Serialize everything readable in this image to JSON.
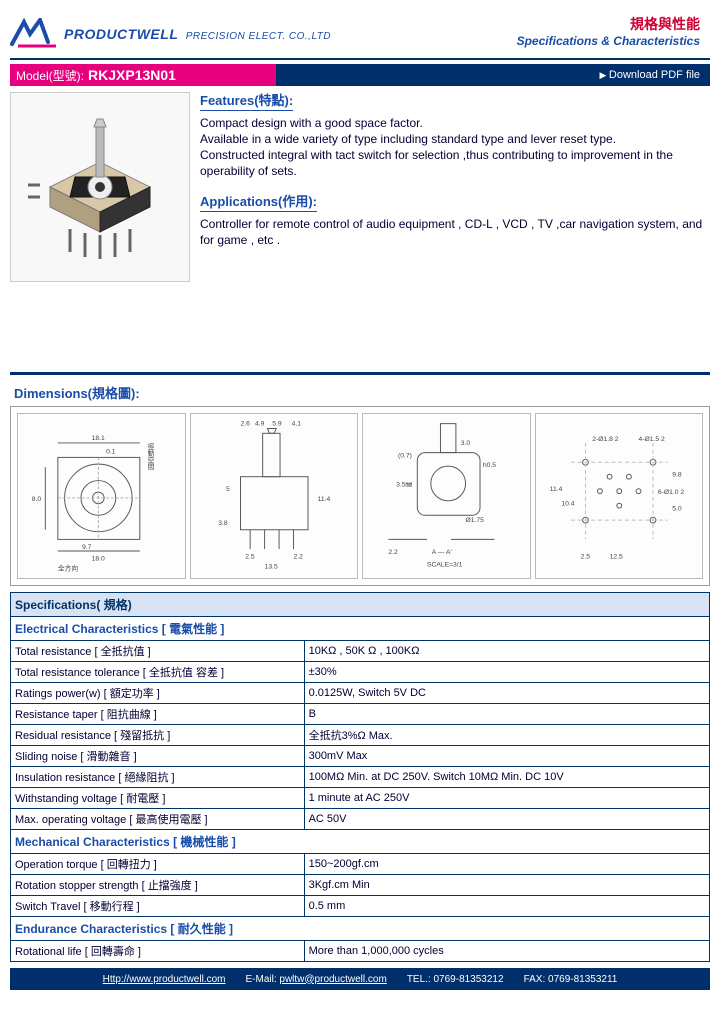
{
  "header": {
    "company": "PRODUCTWELL",
    "company_sub": "PRECISION ELECT. CO.,LTD",
    "cn_title": "規格與性能",
    "en_title": "Specifications & Characteristics"
  },
  "model": {
    "label": "Model(型號):",
    "value": "RKJXP13N01",
    "download": "Download PDF file"
  },
  "features": {
    "title": "Features(特點):",
    "body": "Compact design with a good space factor.\nAvailable in a wide variety of type including standard type and lever reset type.\nConstructed integral with tact switch for selection ,thus contributing to improvement in the operability of sets."
  },
  "applications": {
    "title": "Applications(作用):",
    "body": "Controller for remote control of audio equipment , CD-L , VCD , TV ,car navigation system, and for game , etc ."
  },
  "dimensions": {
    "title": "Dimensions(規格圖):"
  },
  "diagram": {
    "views": [
      {
        "labels": [
          "18.1",
          "0.1",
          "8.0",
          "9.7",
          "18.0",
          "全方向"
        ],
        "note": "徑動空間"
      },
      {
        "labels": [
          "2.6",
          "4.9",
          "5.9",
          "4.1",
          "11.4",
          "13.5",
          "5",
          "3.8",
          "2.5",
          "2.2"
        ]
      },
      {
        "labels": [
          "3.0",
          "h0.5",
          "Ø1.75",
          "2.2",
          "(0.7)",
          "3.5㎜",
          "A — A'",
          "SCALE=3/1"
        ]
      },
      {
        "labels": [
          "2-Ø1.8 2",
          "4-Ø1.5 2",
          "6-Ø1.0 2",
          "11.4",
          "10.4",
          "5.0",
          "12.5",
          "2.5",
          "9.8"
        ]
      }
    ]
  },
  "specs": {
    "title": "Specifications( 規格)",
    "categories": [
      {
        "name": "Electrical Characteristics [ 電氣性能 ]",
        "rows": [
          [
            "Total resistance [ 全抵抗值 ]",
            "10KΩ , 50K Ω , 100KΩ"
          ],
          [
            "Total resistance tolerance [ 全抵抗值 容差 ]",
            "±30%"
          ],
          [
            "Ratings power(w) [ 額定功率 ]",
            "0.0125W, Switch 5V DC"
          ],
          [
            "Resistance taper [ 阻抗曲線 ]",
            "B"
          ],
          [
            "Residual resistance [ 殘留抵抗 ]",
            "全抵抗3%Ω Max."
          ],
          [
            "Sliding noise [ 滑動雜音 ]",
            "300mV Max"
          ],
          [
            "Insulation resistance [ 絕緣阻抗 ]",
            "100MΩ Min. at DC 250V. Switch 10MΩ Min. DC 10V"
          ],
          [
            "Withstanding voltage [ 耐電壓 ]",
            "1 minute at AC 250V"
          ],
          [
            "Max. operating voltage [ 最高使用電壓 ]",
            "AC 50V"
          ]
        ]
      },
      {
        "name": "Mechanical Characteristics [ 機械性能 ]",
        "rows": [
          [
            "Operation torque [ 回轉扭力 ]",
            "150~200gf.cm"
          ],
          [
            "Rotation stopper strength [ 止擋強度 ]",
            "3Kgf.cm Min"
          ],
          [
            "Switch Travel [ 移動行程 ]",
            "0.5 mm"
          ]
        ]
      },
      {
        "name": "Endurance Characteristics [ 耐久性能 ]",
        "rows": [
          [
            "Rotational life [ 回轉壽命 ]",
            "More than 1,000,000 cycles"
          ]
        ]
      }
    ]
  },
  "footer": {
    "url": "Http://www.productwell.com",
    "email_label": "E-Mail:",
    "email": "pwltw@productwell.com",
    "tel": "TEL.: 0769-81353212",
    "fax": "FAX: 0769-81353211"
  },
  "colors": {
    "primary_blue": "#002f6c",
    "link_blue": "#1a4da8",
    "magenta": "#e6007e",
    "red": "#cc0033",
    "table_header_bg": "#d9e2f3"
  }
}
